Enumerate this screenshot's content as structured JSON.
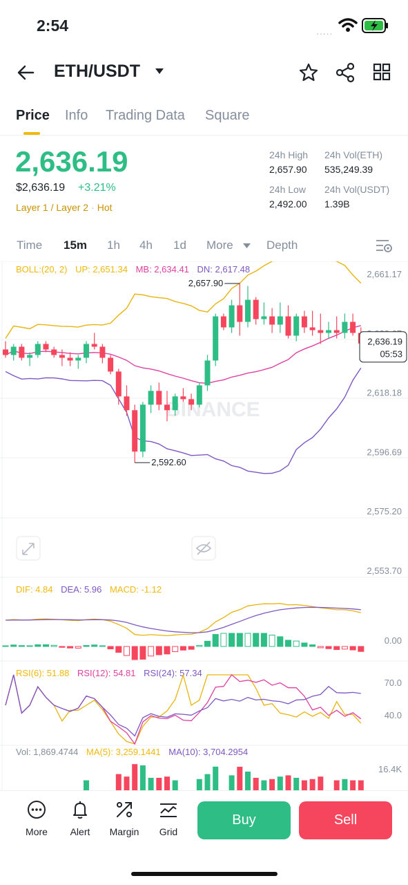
{
  "status": {
    "time": "2:54",
    "signal": "....."
  },
  "header": {
    "pair": "ETH/USDT"
  },
  "tabs": [
    "Price",
    "Info",
    "Trading Data",
    "Square"
  ],
  "price": {
    "last": "2,636.19",
    "usd": "$2,636.19",
    "change": "+3.21%",
    "tags": [
      "Layer 1 / Layer 2",
      "Hot"
    ]
  },
  "stats": {
    "high_label": "24h High",
    "high": "2,657.90",
    "vol_eth_label": "24h Vol(ETH)",
    "vol_eth": "535,249.39",
    "low_label": "24h Low",
    "low": "2,492.00",
    "vol_usdt_label": "24h Vol(USDT)",
    "vol_usdt": "1.39B"
  },
  "timeframes": {
    "items": [
      "Time",
      "15m",
      "1h",
      "4h",
      "1d",
      "More",
      "Depth"
    ],
    "selected": "15m"
  },
  "indicators": {
    "boll": [
      "BOLL:(20, 2)",
      "UP: 2,651.34",
      "MB: 2,634.41",
      "DN: 2,617.48"
    ],
    "macd": [
      "DIF: 4.84",
      "DEA: 5.96",
      "MACD: -1.12"
    ],
    "rsi": [
      "RSI(6): 51.88",
      "RSI(12): 54.81",
      "RSI(24): 57.34"
    ],
    "vol": [
      "Vol: 1,869.4744",
      "MA(5): 3,259.1441",
      "MA(10): 3,704.2954"
    ]
  },
  "chart_data": {
    "type": "candlestick",
    "price_axis": [
      "2,661.17",
      "2,639.67",
      "2,618.18",
      "2,596.69",
      "2,575.20",
      "2,553.70"
    ],
    "high_marker": "2,657.90",
    "low_marker": "2,592.60",
    "current_price": "2,636.19",
    "countdown": "05:53",
    "watermark": "BINANCE",
    "macd_axis": [
      "0.00"
    ],
    "rsi_axis": [
      "70.0",
      "40.0"
    ],
    "vol_axis": [
      "16.4K"
    ],
    "candles": [
      [
        2634,
        2637,
        2631,
        2632
      ],
      [
        2632,
        2636,
        2630,
        2635
      ],
      [
        2635,
        2636,
        2630,
        2631
      ],
      [
        2631,
        2633,
        2628,
        2632
      ],
      [
        2632,
        2637,
        2631,
        2636
      ],
      [
        2636,
        2637,
        2633,
        2634
      ],
      [
        2634,
        2635,
        2631,
        2632
      ],
      [
        2632,
        2634,
        2628,
        2631
      ],
      [
        2631,
        2633,
        2628,
        2630
      ],
      [
        2630,
        2632,
        2627,
        2631
      ],
      [
        2631,
        2637,
        2629,
        2636
      ],
      [
        2636,
        2640,
        2634,
        2635
      ],
      [
        2635,
        2636,
        2629,
        2631
      ],
      [
        2631,
        2632,
        2625,
        2626
      ],
      [
        2626,
        2627,
        2614,
        2617
      ],
      [
        2617,
        2621,
        2610,
        2612
      ],
      [
        2612,
        2614,
        2593,
        2597
      ],
      [
        2597,
        2615,
        2595,
        2614
      ],
      [
        2614,
        2621,
        2611,
        2619
      ],
      [
        2619,
        2622,
        2612,
        2614
      ],
      [
        2614,
        2619,
        2608,
        2612
      ],
      [
        2612,
        2618,
        2610,
        2617
      ],
      [
        2617,
        2620,
        2615,
        2616
      ],
      [
        2616,
        2618,
        2612,
        2614
      ],
      [
        2614,
        2622,
        2613,
        2621
      ],
      [
        2621,
        2632,
        2619,
        2630
      ],
      [
        2630,
        2647,
        2628,
        2646
      ],
      [
        2646,
        2647,
        2641,
        2642
      ],
      [
        2642,
        2652,
        2640,
        2650
      ],
      [
        2650,
        2657.9,
        2639,
        2644
      ],
      [
        2644,
        2657,
        2642,
        2652
      ],
      [
        2652,
        2653,
        2643,
        2645
      ],
      [
        2645,
        2651,
        2643,
        2646
      ],
      [
        2646,
        2649,
        2640,
        2643
      ],
      [
        2643,
        2651,
        2640,
        2646
      ],
      [
        2646,
        2650,
        2638,
        2639
      ],
      [
        2639,
        2647,
        2637,
        2646
      ],
      [
        2646,
        2648,
        2640,
        2642
      ],
      [
        2642,
        2648,
        2639,
        2641
      ],
      [
        2641,
        2647,
        2636,
        2640
      ],
      [
        2640,
        2644,
        2638,
        2641
      ],
      [
        2641,
        2646,
        2638,
        2640
      ],
      [
        2640,
        2647,
        2638,
        2644
      ],
      [
        2644,
        2647,
        2639,
        2640
      ],
      [
        2640,
        2642,
        2634,
        2636.19
      ]
    ]
  },
  "bottom_nav": [
    "More",
    "Alert",
    "Margin",
    "Grid"
  ],
  "actions": {
    "buy": "Buy",
    "sell": "Sell"
  },
  "colors": {
    "up": "#2ebd85",
    "down": "#f6465d",
    "accent": "#f0b90b",
    "ma_mid": "#e040a0",
    "band": "#7e57c2"
  }
}
